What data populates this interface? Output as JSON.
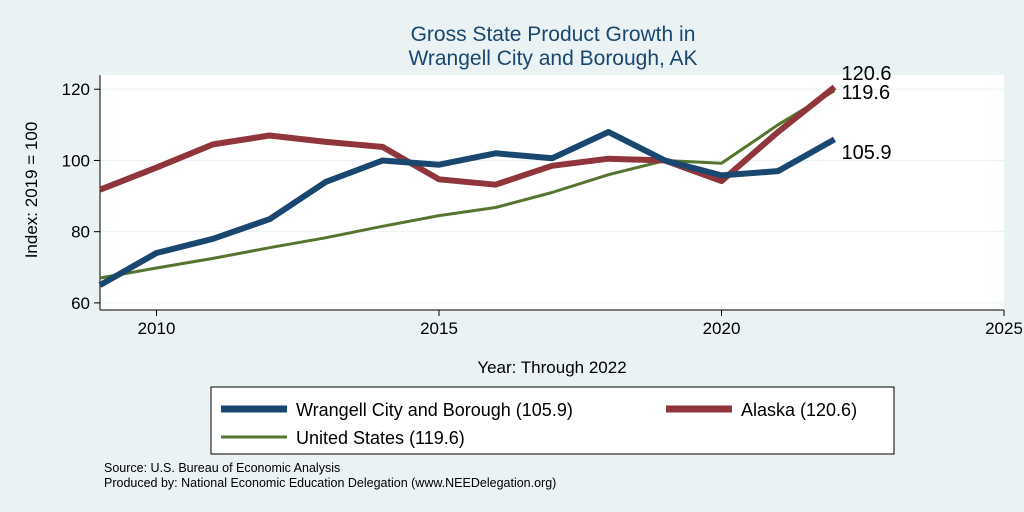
{
  "chart_data": {
    "type": "line",
    "title": [
      "Gross State Product Growth in",
      "Wrangell City and Borough, AK"
    ],
    "xlabel": "Year: Through 2022",
    "ylabel": "Index: 2019 = 100",
    "xlim": [
      2009,
      2025
    ],
    "ylim": [
      58,
      124
    ],
    "xticks": [
      2010,
      2015,
      2020,
      2025
    ],
    "yticks": [
      60,
      80,
      100,
      120
    ],
    "grid": true,
    "legend_position": "bottom",
    "x": [
      2009,
      2010,
      2011,
      2012,
      2013,
      2014,
      2015,
      2016,
      2017,
      2018,
      2019,
      2020,
      2021,
      2022
    ],
    "series": [
      {
        "name": "Wrangell City and Borough (105.9)",
        "color": "#1a476f",
        "width": "thick",
        "end_label": "105.9",
        "values": [
          65,
          74,
          78,
          83.5,
          94,
          100,
          98.8,
          102,
          100.6,
          108,
          100,
          95.8,
          97,
          105.9
        ]
      },
      {
        "name": "Alaska (120.6)",
        "color": "#90353b",
        "width": "thick",
        "end_label": "120.6",
        "values": [
          91.8,
          98,
          104.5,
          107,
          105.2,
          103.8,
          94.7,
          93.2,
          98.5,
          100.5,
          100,
          94.2,
          108,
          120.6
        ]
      },
      {
        "name": "United States (119.6)",
        "color": "#55752f",
        "width": "thin",
        "end_label": "119.6",
        "values": [
          67,
          69.8,
          72.5,
          75.5,
          78.3,
          81.5,
          84.5,
          86.8,
          91,
          96,
          100,
          99.2,
          110,
          119.6
        ]
      }
    ]
  },
  "notes": {
    "source": "Source: U.S. Bureau of Economic Analysis",
    "produced_by": "Produced by: National Economic Education Delegation (www.NEEDelegation.org)"
  }
}
